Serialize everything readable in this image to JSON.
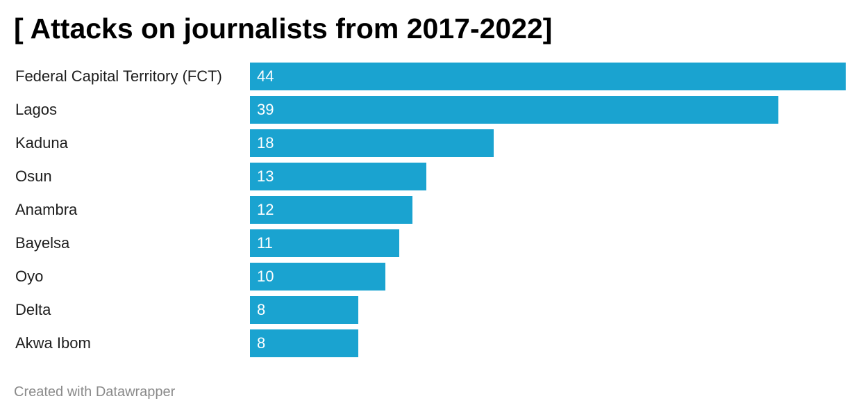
{
  "chart_data": {
    "type": "bar",
    "orientation": "horizontal",
    "title": "[ Attacks on journalists from 2017-2022]",
    "categories": [
      "Federal Capital Territory (FCT)",
      "Lagos",
      "Kaduna",
      "Osun",
      "Anambra",
      "Bayelsa",
      "Oyo",
      "Delta",
      "Akwa Ibom"
    ],
    "values": [
      44,
      39,
      18,
      13,
      12,
      11,
      10,
      8,
      8
    ],
    "xlim": [
      0,
      44
    ],
    "grid": false,
    "value_labels": "inside-bar-start",
    "bar_color": "#1aa3d0",
    "value_label_color": "#ffffff"
  },
  "footer": {
    "credit": "Created with Datawrapper"
  }
}
